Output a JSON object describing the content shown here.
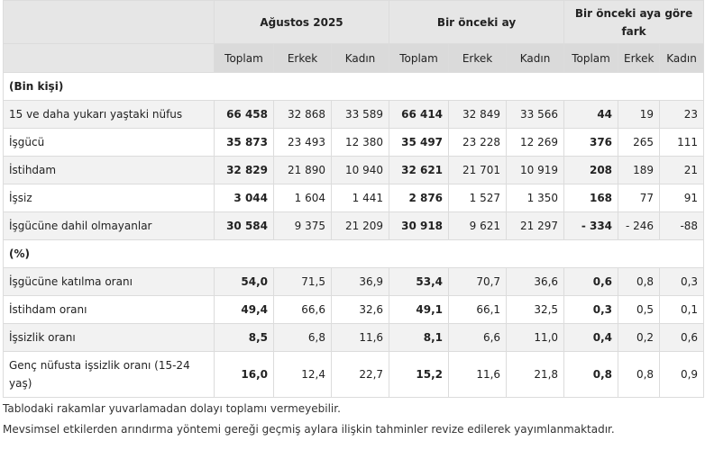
{
  "header": {
    "groups": [
      "Ağustos 2025",
      "Bir önceki ay",
      "Bir önceki aya göre fark"
    ],
    "subcols": [
      "Toplam",
      "Erkek",
      "Kadın"
    ]
  },
  "sections": [
    {
      "title": "(Bin kişi)",
      "rows": [
        {
          "label": "15 ve daha yukarı yaştaki nüfus",
          "values": [
            "66 458",
            "32 868",
            "33 589",
            "66 414",
            "32 849",
            "33 566",
            "44",
            "19",
            "23"
          ]
        },
        {
          "label": "İşgücü",
          "values": [
            "35 873",
            "23 493",
            "12 380",
            "35 497",
            "23 228",
            "12 269",
            "376",
            "265",
            "111"
          ]
        },
        {
          "label": "İstihdam",
          "values": [
            "32 829",
            "21 890",
            "10 940",
            "32 621",
            "21 701",
            "10 919",
            "208",
            "189",
            "21"
          ]
        },
        {
          "label": "İşsiz",
          "values": [
            "3 044",
            "1 604",
            "1 441",
            "2 876",
            "1 527",
            "1 350",
            "168",
            "77",
            "91"
          ]
        },
        {
          "label": "İşgücüne dahil olmayanlar",
          "values": [
            "30 584",
            "9 375",
            "21 209",
            "30 918",
            "9 621",
            "21 297",
            "- 334",
            "- 246",
            "-88"
          ]
        }
      ]
    },
    {
      "title": "(%)",
      "rows": [
        {
          "label": "İşgücüne katılma oranı",
          "values": [
            "54,0",
            "71,5",
            "36,9",
            "53,4",
            "70,7",
            "36,6",
            "0,6",
            "0,8",
            "0,3"
          ]
        },
        {
          "label": "İstihdam oranı",
          "values": [
            "49,4",
            "66,6",
            "32,6",
            "49,1",
            "66,1",
            "32,5",
            "0,3",
            "0,5",
            "0,1"
          ]
        },
        {
          "label": "İşsizlik oranı",
          "values": [
            "8,5",
            "6,8",
            "11,6",
            "8,1",
            "6,6",
            "11,0",
            "0,4",
            "0,2",
            "0,6"
          ]
        },
        {
          "label": "Genç nüfusta işsizlik oranı (15-24 yaş)",
          "values": [
            "16,0",
            "12,4",
            "22,7",
            "15,2",
            "11,6",
            "21,8",
            "0,8",
            "0,8",
            "0,9"
          ]
        }
      ]
    }
  ],
  "notes": [
    "Tablodaki rakamlar yuvarlamadan dolayı toplamı vermeyebilir.",
    "Mevsimsel etkilerden arındırma yöntemi gereği geçmiş aylara ilişkin tahminler revize edilerek yayımlanmaktadır."
  ]
}
